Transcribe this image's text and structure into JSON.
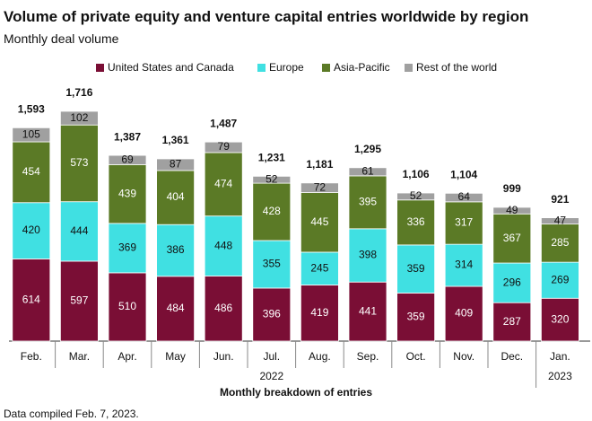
{
  "chart_data": {
    "type": "stacked-bar",
    "title": "Volume of private equity and venture capital entries worldwide by region",
    "subtitle": "Monthly deal volume",
    "x_label": "Monthly breakdown of entries",
    "footnote": "Data compiled Feb. 7, 2023.",
    "category_groups": [
      {
        "label": "2022",
        "categories": [
          "Feb.",
          "Mar.",
          "Apr.",
          "May",
          "Jun.",
          "Jul.",
          "Aug.",
          "Sep.",
          "Oct.",
          "Nov.",
          "Dec."
        ]
      },
      {
        "label": "2023",
        "categories": [
          "Jan."
        ]
      }
    ],
    "series": [
      {
        "name": "United States and Canada",
        "color": "#7a0e35",
        "values": [
          614,
          597,
          510,
          484,
          486,
          396,
          419,
          441,
          359,
          409,
          287,
          320
        ]
      },
      {
        "name": "Europe",
        "color": "#40e0e2",
        "values": [
          420,
          444,
          369,
          386,
          448,
          355,
          245,
          398,
          359,
          314,
          296,
          269
        ]
      },
      {
        "name": "Asia-Pacific",
        "color": "#5b7a26",
        "values": [
          454,
          573,
          439,
          404,
          474,
          428,
          445,
          395,
          336,
          317,
          367,
          285
        ]
      },
      {
        "name": "Rest of the world",
        "color": "#a0a0a0",
        "values": [
          105,
          102,
          69,
          87,
          79,
          52,
          72,
          61,
          52,
          64,
          49,
          47
        ]
      }
    ],
    "totals": [
      1593,
      1716,
      1387,
      1361,
      1487,
      1231,
      1181,
      1295,
      1106,
      1104,
      999,
      921
    ],
    "total_labels": [
      "1,593",
      "1,716",
      "1,387",
      "1,361",
      "1,487",
      "1,231",
      "1,181",
      "1,295",
      "1,106",
      "1,104",
      "999",
      "921"
    ]
  }
}
